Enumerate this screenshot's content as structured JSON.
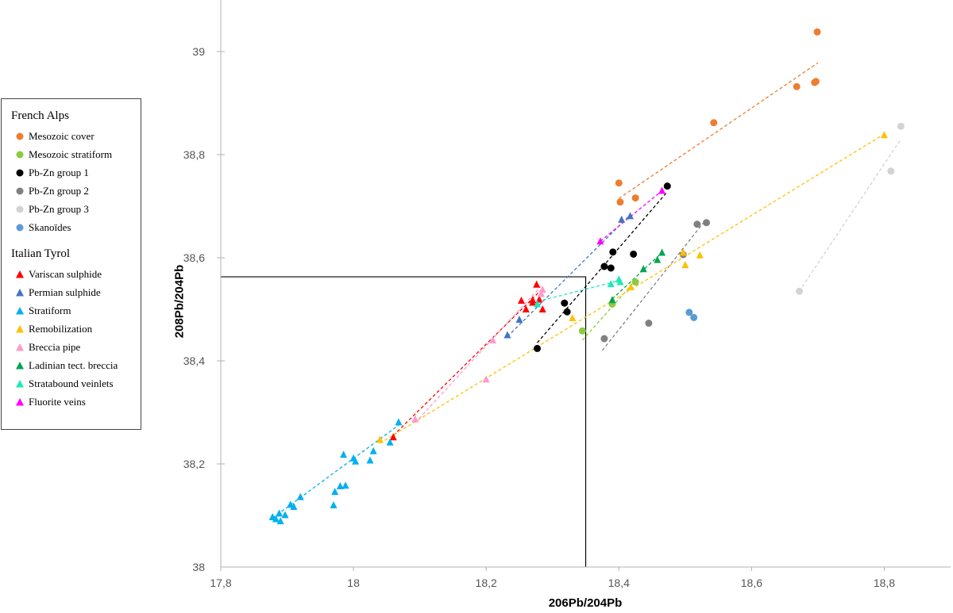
{
  "chart_data": {
    "type": "scatter",
    "title": "",
    "xlabel": "206Pb/204Pb",
    "ylabel": "208Pb/204Pb",
    "xlim": [
      17.8,
      18.9
    ],
    "ylim": [
      38.0,
      39.1
    ],
    "x_ticks": [
      17.8,
      18.0,
      18.2,
      18.4,
      18.6,
      18.8
    ],
    "y_ticks": [
      38.0,
      38.2,
      38.4,
      38.6,
      38.8,
      39.0
    ],
    "x_tick_labels": [
      "17,8",
      "18",
      "18,2",
      "18,4",
      "18,6",
      "18,8"
    ],
    "y_tick_labels": [
      "38",
      "38,2",
      "38,4",
      "38,6",
      "38,8",
      "39"
    ],
    "inset_box": {
      "x": [
        17.8,
        18.35
      ],
      "y": [
        38.0,
        38.563
      ]
    },
    "legend_groups": [
      {
        "title": "French Alps",
        "series": [
          "Mesozoic cover",
          "Mesozoic stratiform",
          "Pb-Zn group 1",
          "Pb-Zn group 2",
          "Pb-Zn group 3",
          "Skanoïdes"
        ]
      },
      {
        "title": "Italian Tyrol",
        "series": [
          "Variscan sulphide",
          "Permian sulphide",
          "Stratiform",
          "Remobilization",
          "Breccia pipe",
          "Ladinian tect. breccia",
          "Stratabound veinlets",
          "Fluorite veins"
        ]
      }
    ],
    "series": [
      {
        "name": "Mesozoic cover",
        "marker": "circle",
        "color": "#ED7D31",
        "x": [
          18.4,
          18.402,
          18.425,
          18.543,
          18.668,
          18.695,
          18.697,
          18.699
        ],
        "y": [
          38.745,
          38.708,
          38.716,
          38.862,
          38.932,
          38.94,
          38.942,
          39.038
        ],
        "trend": [
          [
            18.4,
            38.715
          ],
          [
            18.7,
            38.978
          ]
        ]
      },
      {
        "name": "Mesozoic stratiform",
        "marker": "circle",
        "color": "#8CCB3F",
        "x": [
          18.345,
          18.39,
          18.425
        ],
        "y": [
          38.458,
          38.51,
          38.553
        ],
        "trend": [
          [
            18.345,
            38.44
          ],
          [
            18.425,
            38.556
          ]
        ]
      },
      {
        "name": "Pb-Zn group 1",
        "marker": "circle",
        "color": "#000000",
        "x": [
          18.277,
          18.318,
          18.322,
          18.378,
          18.388,
          18.391,
          18.422,
          18.473
        ],
        "y": [
          38.424,
          38.512,
          38.495,
          38.583,
          38.58,
          38.611,
          38.607,
          38.739
        ],
        "trend": [
          [
            18.277,
            38.435
          ],
          [
            18.471,
            38.725
          ]
        ]
      },
      {
        "name": "Pb-Zn group 2",
        "marker": "circle",
        "color": "#808080",
        "x": [
          18.378,
          18.445,
          18.497,
          18.518,
          18.532
        ],
        "y": [
          38.443,
          38.473,
          38.606,
          38.665,
          38.668
        ],
        "trend": [
          [
            18.375,
            38.42
          ],
          [
            18.53,
            38.672
          ]
        ]
      },
      {
        "name": "Pb-Zn group 3",
        "marker": "circle",
        "color": "#D3D3D3",
        "x": [
          18.672,
          18.81,
          18.825
        ],
        "y": [
          38.535,
          38.768,
          38.855
        ],
        "trend": [
          [
            18.672,
            38.535
          ],
          [
            18.825,
            38.83
          ]
        ]
      },
      {
        "name": "Skanoïdes",
        "marker": "circle",
        "color": "#5B9BD5",
        "x": [
          18.506,
          18.513
        ],
        "y": [
          38.494,
          38.484
        ]
      },
      {
        "name": "Variscan sulphide",
        "marker": "triangle",
        "color": "#FF0000",
        "x": [
          18.06,
          18.253,
          18.26,
          18.27,
          18.27,
          18.276,
          18.28,
          18.285
        ],
        "y": [
          38.252,
          38.517,
          38.5,
          38.513,
          38.518,
          38.548,
          38.519,
          38.5
        ],
        "trend": [
          [
            18.06,
            38.255
          ],
          [
            18.285,
            38.54
          ]
        ]
      },
      {
        "name": "Permian sulphide",
        "marker": "triangle",
        "color": "#4472C4",
        "x": [
          18.232,
          18.25,
          18.404,
          18.417
        ],
        "y": [
          38.45,
          38.48,
          38.674,
          38.681
        ],
        "trend": [
          [
            18.232,
            38.447
          ],
          [
            18.417,
            38.683
          ]
        ]
      },
      {
        "name": "Stratiform",
        "marker": "triangle",
        "color": "#00B0F0",
        "x": [
          17.878,
          17.883,
          17.888,
          17.89,
          17.897,
          17.905,
          17.91,
          17.92,
          17.97,
          17.972,
          17.98,
          17.985,
          17.988,
          18.0,
          18.003,
          18.025,
          18.03,
          18.055,
          18.068
        ],
        "y": [
          38.097,
          38.093,
          38.104,
          38.089,
          38.101,
          38.121,
          38.117,
          38.136,
          38.12,
          38.146,
          38.157,
          38.218,
          38.158,
          38.211,
          38.205,
          38.207,
          38.225,
          38.242,
          38.281
        ],
        "trend": [
          [
            17.878,
            38.095
          ],
          [
            18.068,
            38.275
          ]
        ]
      },
      {
        "name": "Remobilization",
        "marker": "triangle",
        "color": "#FFC000",
        "x": [
          18.04,
          18.33,
          18.418,
          18.497,
          18.5,
          18.522,
          18.8
        ],
        "y": [
          38.247,
          38.483,
          38.543,
          38.61,
          38.586,
          38.605,
          38.838
        ],
        "trend": [
          [
            18.04,
            38.24
          ],
          [
            18.8,
            38.84
          ]
        ]
      },
      {
        "name": "Breccia pipe",
        "marker": "triangle",
        "color": "#FF99CC",
        "x": [
          18.093,
          18.2,
          18.21,
          18.283,
          18.285
        ],
        "y": [
          38.287,
          38.364,
          38.44,
          38.53,
          38.538
        ],
        "trend": [
          [
            18.093,
            38.28
          ],
          [
            18.283,
            38.545
          ]
        ]
      },
      {
        "name": "Ladinian tect. breccia",
        "marker": "triangle",
        "color": "#00A550",
        "x": [
          18.39,
          18.437,
          18.458,
          18.465
        ],
        "y": [
          38.518,
          38.578,
          38.596,
          38.61
        ],
        "trend": [
          [
            18.39,
            38.52
          ],
          [
            18.465,
            38.61
          ]
        ]
      },
      {
        "name": "Stratabound veinlets",
        "marker": "triangle",
        "color": "#1DE9B6",
        "x": [
          18.277,
          18.388,
          18.4,
          18.402
        ],
        "y": [
          38.51,
          38.549,
          38.558,
          38.553
        ],
        "trend": [
          [
            18.277,
            38.515
          ],
          [
            18.402,
            38.556
          ]
        ]
      },
      {
        "name": "Fluorite veins",
        "marker": "triangle",
        "color": "#FF00FF",
        "x": [
          18.372,
          18.465
        ],
        "y": [
          38.632,
          38.73
        ],
        "trend": [
          [
            18.372,
            38.632
          ],
          [
            18.465,
            38.73
          ]
        ]
      }
    ]
  }
}
